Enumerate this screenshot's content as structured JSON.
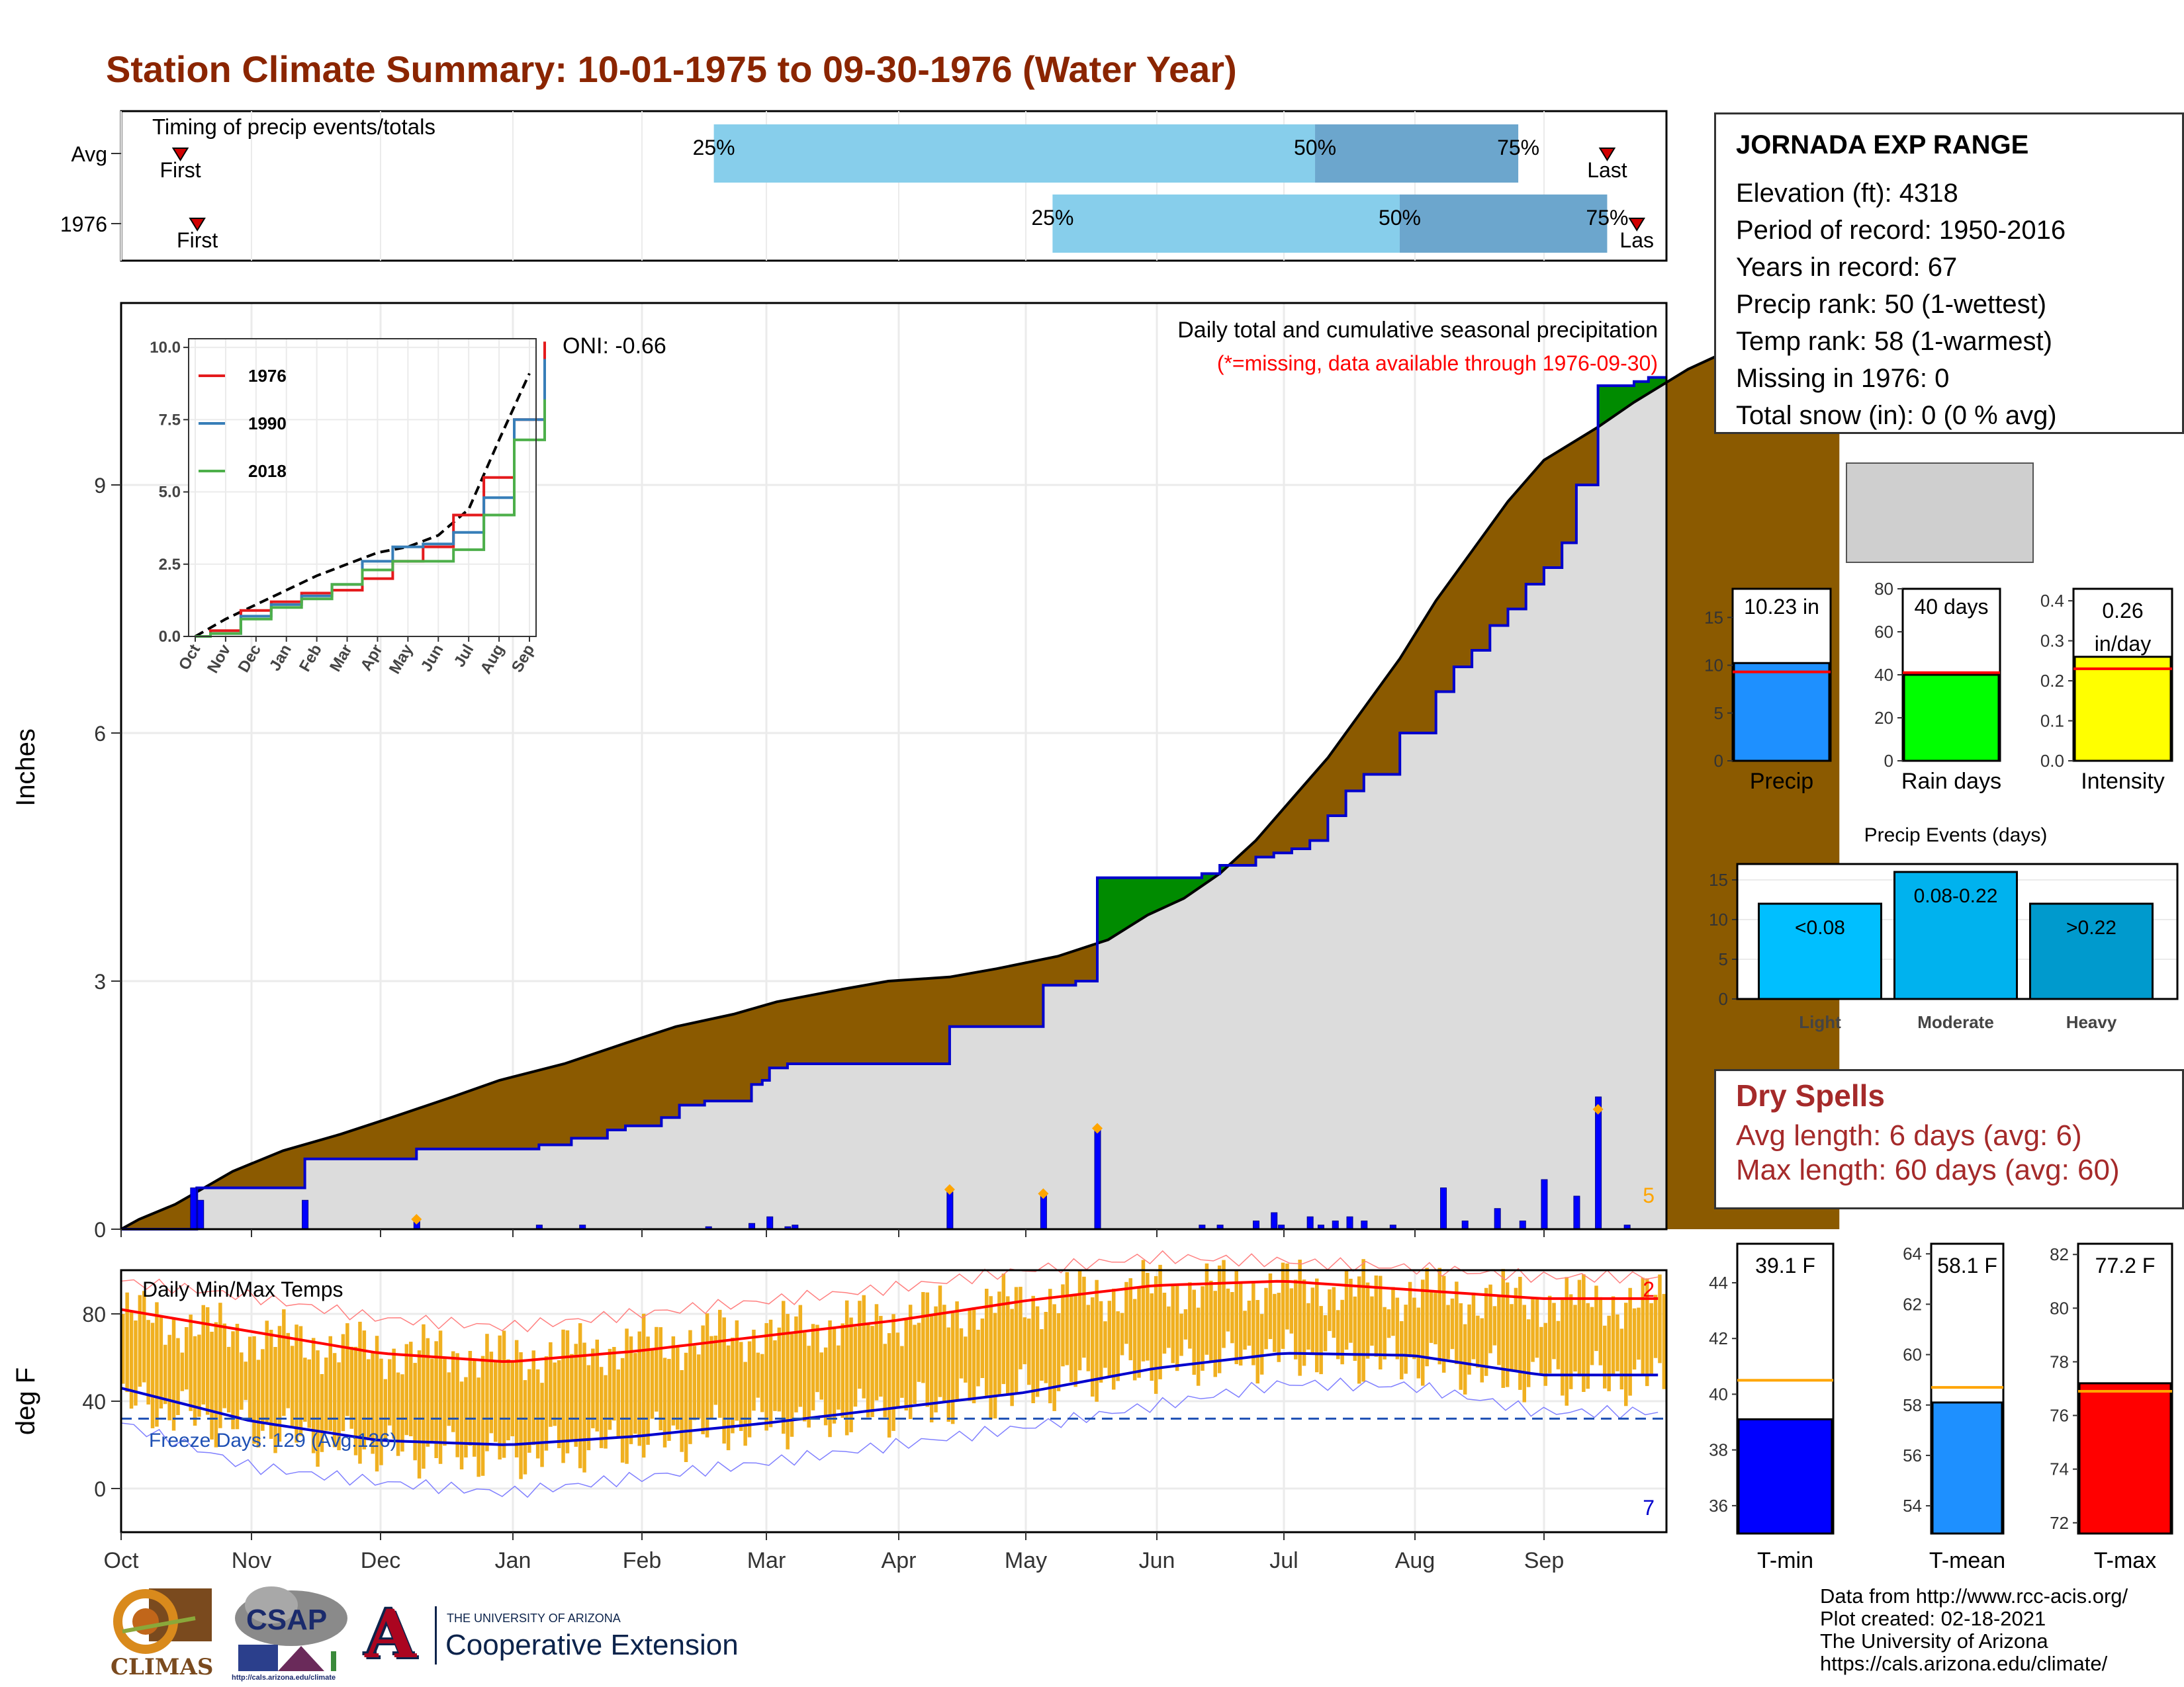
{
  "title": "Station Climate Summary: 10-01-1975 to 09-30-1976 (Water Year)",
  "colors": {
    "title": "#8B2500",
    "cum_current": "#8B5A00",
    "cum_wetter": "#008B00",
    "bar_precip": "#0000FF",
    "temp_bar": "#F0B020",
    "tmax_line": "#FF0000",
    "tmin_line": "#0000CD",
    "dry_text": "#A52A2A"
  },
  "timing": {
    "title": "Timing of precip events/totals",
    "rows": [
      {
        "label": "Avg",
        "first_label": "First",
        "last_label": "Last",
        "first_day": 14,
        "last_day": 351,
        "q25_day": 140,
        "q50_day": 282,
        "q75_day": 330,
        "q25_label": "25%",
        "q50_label": "50%",
        "q75_label": "75%"
      },
      {
        "label": "1976",
        "first_label": "First",
        "last_label": "Las",
        "first_day": 18,
        "last_day": 358,
        "q25_day": 220,
        "q50_day": 302,
        "q75_day": 351,
        "q25_label": "25%",
        "q50_label": "50%",
        "q75_label": "75%"
      }
    ]
  },
  "precip_panel": {
    "ylabel": "Inches",
    "yticks": [
      0,
      3,
      6,
      9
    ],
    "heading": "Daily total and cumulative seasonal precipitation",
    "note": "(*=missing, data available through 1976-09-30)",
    "oni": "ONI: -0.66",
    "corner_count": "5"
  },
  "temp_panel": {
    "ylabel": "deg F",
    "yticks": [
      0,
      40,
      80
    ],
    "heading": "Daily Min/Max Temps",
    "freeze_label": "Freeze Days: 129 (Avg:126)",
    "count_top": "2",
    "count_bottom": "7",
    "freeze_line": 32
  },
  "months": [
    "Oct",
    "Nov",
    "Dec",
    "Jan",
    "Feb",
    "Mar",
    "Apr",
    "May",
    "Jun",
    "Jul",
    "Aug",
    "Sep"
  ],
  "inset": {
    "yticks": [
      "0.0",
      "2.5",
      "5.0",
      "7.5",
      "10.0"
    ],
    "xticks": [
      "Oct",
      "Nov",
      "Dec",
      "Jan",
      "Feb",
      "Mar",
      "Apr",
      "May",
      "Jun",
      "Jul",
      "Aug",
      "Sep"
    ],
    "legend": [
      {
        "name": "1976",
        "color": "#E41A1C"
      },
      {
        "name": "1990",
        "color": "#377EB8"
      },
      {
        "name": "2018",
        "color": "#4DAF4A"
      }
    ]
  },
  "station": {
    "name": "JORNADA EXP RANGE",
    "lines": [
      "Elevation (ft): 4318",
      "Period of record: 1950-2016",
      "Years in record: 67",
      "Precip rank: 50 (1-wettest)",
      "Temp rank: 58 (1-warmest)",
      "Missing in 1976: 0",
      "Total snow (in): 0 (0 % avg)"
    ]
  },
  "summary_bars": [
    {
      "xlabel": "Precip",
      "value_label": "10.23 in",
      "value": 10.23,
      "avg": 9.3,
      "ymax": 18,
      "yticks": [
        0,
        5,
        10,
        15
      ],
      "color": "#1E90FF"
    },
    {
      "xlabel": "Rain days",
      "value_label": "40 days",
      "value": 40,
      "avg": 41,
      "ymax": 80,
      "yticks": [
        0,
        20,
        40,
        60,
        80
      ],
      "color": "#00FF00"
    },
    {
      "xlabel": "Intensity",
      "value_label_1": "0.26",
      "value_label_2": "in/day",
      "value": 0.26,
      "avg": 0.23,
      "ymax": 0.43,
      "yticks": [
        "0.0",
        "0.1",
        "0.2",
        "0.3",
        "0.4"
      ],
      "color": "#FFFF00"
    }
  ],
  "precip_events": {
    "title": "Precip Events (days)",
    "ymax": 17,
    "yticks": [
      0,
      5,
      10,
      15
    ],
    "bars": [
      {
        "name": "Light",
        "label": "<0.08",
        "value": 12,
        "color": "#00BFFF"
      },
      {
        "name": "Moderate",
        "label": "0.08-0.22",
        "value": 16,
        "color": "#00B2EE"
      },
      {
        "name": "Heavy",
        "label": ">0.22",
        "value": 12,
        "color": "#009ACD"
      }
    ]
  },
  "dry_spells": {
    "title": "Dry Spells",
    "avg_length": "Avg length: 6 days (avg: 6)",
    "max_length": "Max length: 60 days (avg: 60)"
  },
  "temp_bars": [
    {
      "xlabel": "T-min",
      "value_label": "39.1 F",
      "value": 39.1,
      "avg": 40.5,
      "ymin": 35,
      "ymax": 45.4,
      "yticks": [
        36,
        38,
        40,
        42,
        44
      ],
      "color": "#0000FF"
    },
    {
      "xlabel": "T-mean",
      "value_label": "58.1 F",
      "value": 58.1,
      "avg": 58.7,
      "ymin": 52.9,
      "ymax": 64.4,
      "yticks": [
        54,
        56,
        58,
        60,
        62,
        64
      ],
      "color": "#1E90FF"
    },
    {
      "xlabel": "T-max",
      "value_label": "77.2 F",
      "value": 77.2,
      "avg": 76.9,
      "ymin": 71.6,
      "ymax": 82.4,
      "yticks": [
        72,
        74,
        76,
        78,
        80,
        82
      ],
      "color": "#FF0000"
    }
  ],
  "footer": [
    "Data from http://www.rcc-acis.org/",
    "Plot created: 02-18-2021",
    "The University of Arizona",
    "https://cals.arizona.edu/climate/"
  ],
  "logos": {
    "climas": "CLIMAS",
    "csap": "CSAP",
    "csap_url": "http://cals.arizona.edu/climate",
    "ua_line1": "THE UNIVERSITY OF ARIZONA",
    "ua_line2": "Cooperative Extension",
    "ua_letter": "A"
  },
  "chart_data": [
    {
      "type": "area",
      "title": "Daily total and cumulative seasonal precipitation",
      "ylabel": "Inches",
      "ylim": [
        0,
        11.2
      ],
      "x_unit": "day of water year (Oct 1 = 0)",
      "avg_cumulative": [
        [
          0,
          0
        ],
        [
          5,
          0.12
        ],
        [
          15,
          0.3
        ],
        [
          25,
          0.55
        ],
        [
          31,
          0.7
        ],
        [
          45,
          0.95
        ],
        [
          61,
          1.15
        ],
        [
          75,
          1.35
        ],
        [
          92,
          1.6
        ],
        [
          105,
          1.8
        ],
        [
          123,
          2.0
        ],
        [
          140,
          2.25
        ],
        [
          154,
          2.45
        ],
        [
          170,
          2.6
        ],
        [
          182,
          2.75
        ],
        [
          200,
          2.9
        ],
        [
          213,
          3.0
        ],
        [
          230,
          3.05
        ],
        [
          243,
          3.15
        ],
        [
          260,
          3.3
        ],
        [
          274,
          3.5
        ],
        [
          285,
          3.8
        ],
        [
          295,
          4.0
        ],
        [
          305,
          4.3
        ],
        [
          315,
          4.7
        ],
        [
          325,
          5.2
        ],
        [
          335,
          5.7
        ],
        [
          345,
          6.3
        ],
        [
          355,
          6.9
        ],
        [
          365,
          7.6
        ],
        [
          375,
          8.2
        ],
        [
          385,
          8.8
        ],
        [
          395,
          9.3
        ],
        [
          410,
          9.7
        ],
        [
          420,
          10.0
        ],
        [
          435,
          10.4
        ],
        [
          445,
          10.6
        ],
        [
          455,
          10.8
        ],
        [
          468,
          11.0
        ],
        [
          477,
          11.2
        ]
      ],
      "current_cumulative": [
        [
          0,
          0
        ],
        [
          20,
          0
        ],
        [
          21,
          0.5
        ],
        [
          50,
          0.5
        ],
        [
          51,
          0.85
        ],
        [
          80,
          0.85
        ],
        [
          82,
          0.97
        ],
        [
          115,
          0.97
        ],
        [
          116,
          1.02
        ],
        [
          125,
          1.1
        ],
        [
          135,
          1.2
        ],
        [
          140,
          1.25
        ],
        [
          150,
          1.35
        ],
        [
          155,
          1.5
        ],
        [
          162,
          1.55
        ],
        [
          175,
          1.75
        ],
        [
          178,
          1.8
        ],
        [
          180,
          1.95
        ],
        [
          185,
          2.0
        ],
        [
          200,
          2.0
        ],
        [
          210,
          2.0
        ],
        [
          225,
          2.0
        ],
        [
          230,
          2.45
        ],
        [
          250,
          2.45
        ],
        [
          256,
          2.95
        ],
        [
          258,
          2.95
        ],
        [
          265,
          3.0
        ],
        [
          270,
          3.0
        ],
        [
          271,
          4.25
        ],
        [
          290,
          4.25
        ],
        [
          300,
          4.3
        ],
        [
          305,
          4.4
        ],
        [
          315,
          4.5
        ],
        [
          320,
          4.55
        ],
        [
          325,
          4.6
        ],
        [
          330,
          4.7
        ],
        [
          335,
          5.0
        ],
        [
          340,
          5.3
        ],
        [
          345,
          5.5
        ],
        [
          355,
          6.0
        ],
        [
          365,
          6.5
        ],
        [
          370,
          6.8
        ],
        [
          375,
          7.0
        ],
        [
          380,
          7.3
        ],
        [
          385,
          7.5
        ],
        [
          390,
          7.8
        ],
        [
          395,
          8.0
        ],
        [
          400,
          8.3
        ],
        [
          404,
          9.0
        ],
        [
          410,
          10.2
        ],
        [
          420,
          10.25
        ],
        [
          424,
          10.3
        ],
        [
          429,
          10.3
        ]
      ],
      "daily_precip": [
        [
          20,
          0.5
        ],
        [
          22,
          0.35
        ],
        [
          51,
          0.35
        ],
        [
          82,
          0.12
        ],
        [
          116,
          0.05
        ],
        [
          128,
          0.05
        ],
        [
          163,
          0.03
        ],
        [
          175,
          0.07
        ],
        [
          180,
          0.15
        ],
        [
          185,
          0.03
        ],
        [
          187,
          0.05
        ],
        [
          230,
          0.45
        ],
        [
          256,
          0.42
        ],
        [
          271,
          1.22
        ],
        [
          300,
          0.05
        ],
        [
          305,
          0.05
        ],
        [
          315,
          0.1
        ],
        [
          320,
          0.2
        ],
        [
          322,
          0.05
        ],
        [
          330,
          0.15
        ],
        [
          333,
          0.05
        ],
        [
          337,
          0.1
        ],
        [
          341,
          0.15
        ],
        [
          345,
          0.1
        ],
        [
          353,
          0.05
        ],
        [
          367,
          0.5
        ],
        [
          373,
          0.1
        ],
        [
          382,
          0.25
        ],
        [
          389,
          0.1
        ],
        [
          395,
          0.6
        ],
        [
          404,
          0.4
        ],
        [
          410,
          1.6
        ],
        [
          418,
          0.05
        ]
      ],
      "wetter_markers": [
        [
          82,
          0.12
        ],
        [
          230,
          0.48
        ],
        [
          256,
          0.43
        ],
        [
          271,
          1.22
        ],
        [
          410,
          1.45
        ]
      ]
    },
    {
      "type": "line",
      "title": "Daily Min/Max Temps",
      "ylabel": "deg F",
      "ylim": [
        -20,
        100
      ],
      "x_unit": "month",
      "x": [
        "Oct",
        "Nov",
        "Dec",
        "Jan",
        "Feb",
        "Mar",
        "Apr",
        "May",
        "Jun",
        "Jul",
        "Aug",
        "Sep"
      ],
      "series": [
        {
          "name": "avg_tmax",
          "values": [
            82,
            72,
            62,
            58,
            63,
            70,
            77,
            86,
            93,
            95,
            91,
            87
          ]
        },
        {
          "name": "avg_tmin",
          "values": [
            46,
            31,
            22,
            20,
            24,
            30,
            37,
            44,
            55,
            62,
            61,
            52
          ]
        },
        {
          "name": "record_max",
          "values": [
            95,
            88,
            78,
            74,
            80,
            86,
            92,
            100,
            106,
            104,
            101,
            97
          ]
        },
        {
          "name": "record_min",
          "values": [
            30,
            10,
            3,
            -2,
            5,
            12,
            20,
            28,
            38,
            48,
            47,
            35
          ]
        }
      ],
      "daily_range_approx": [
        {
          "tmax": 80,
          "tmin": 40
        },
        {
          "tmax": 70,
          "tmin": 28
        },
        {
          "tmax": 63,
          "tmin": 18
        },
        {
          "tmax": 60,
          "tmin": 15
        },
        {
          "tmax": 66,
          "tmin": 22
        },
        {
          "tmax": 72,
          "tmin": 30
        },
        {
          "tmax": 78,
          "tmin": 36
        },
        {
          "tmax": 86,
          "tmin": 45
        },
        {
          "tmax": 92,
          "tmin": 56
        },
        {
          "tmax": 93,
          "tmin": 62
        },
        {
          "tmax": 90,
          "tmin": 58
        },
        {
          "tmax": 86,
          "tmin": 50
        }
      ]
    },
    {
      "type": "line",
      "title": "",
      "ylim": [
        0,
        10.3
      ],
      "x": [
        "Oct",
        "Nov",
        "Dec",
        "Jan",
        "Feb",
        "Mar",
        "Apr",
        "May",
        "Jun",
        "Jul",
        "Aug",
        "Sep"
      ],
      "series": [
        {
          "name": "1976",
          "values": [
            0.2,
            0.9,
            1.2,
            1.5,
            1.6,
            2.0,
            2.6,
            3.1,
            4.2,
            5.5,
            7.5,
            10.2
          ]
        },
        {
          "name": "1990",
          "values": [
            0.1,
            0.7,
            1.1,
            1.4,
            1.8,
            2.6,
            3.1,
            3.2,
            3.6,
            4.8,
            7.5,
            9.6
          ]
        },
        {
          "name": "2018",
          "values": [
            0.1,
            0.6,
            1.0,
            1.3,
            1.8,
            2.3,
            2.6,
            2.6,
            3.0,
            4.2,
            6.8,
            8.2
          ]
        }
      ]
    }
  ]
}
